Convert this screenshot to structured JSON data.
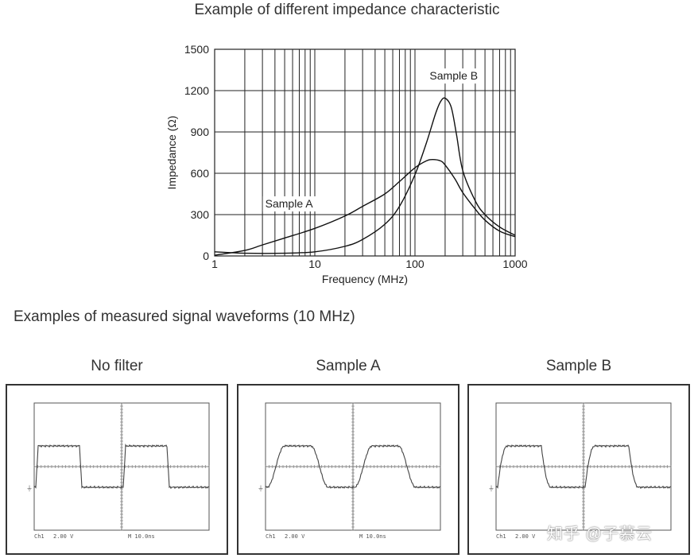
{
  "chart_data": {
    "type": "line",
    "title": "Example of different impedance characteristic",
    "xlabel": "Frequency (MHz)",
    "ylabel": "Impedance (Ω)",
    "x_scale": "log",
    "xlim": [
      1,
      1000
    ],
    "ylim": [
      0,
      1500
    ],
    "xticks": [
      "1",
      "10",
      "100",
      "1000"
    ],
    "yticks": [
      "0",
      "300",
      "600",
      "900",
      "1200",
      "1500"
    ],
    "grid": true,
    "series": [
      {
        "name": "Sample A",
        "x": [
          1,
          2,
          3,
          5,
          10,
          20,
          30,
          50,
          70,
          100,
          130,
          150,
          180,
          200,
          250,
          300,
          400,
          500,
          700,
          1000
        ],
        "y": [
          5,
          40,
          80,
          130,
          200,
          290,
          360,
          450,
          540,
          640,
          690,
          700,
          690,
          660,
          560,
          460,
          340,
          260,
          180,
          140
        ]
      },
      {
        "name": "Sample B",
        "x": [
          1,
          2,
          5,
          10,
          20,
          30,
          50,
          70,
          100,
          130,
          160,
          180,
          200,
          230,
          260,
          300,
          400,
          500,
          700,
          1000
        ],
        "y": [
          30,
          20,
          20,
          30,
          70,
          120,
          230,
          360,
          590,
          820,
          1030,
          1120,
          1145,
          1080,
          880,
          620,
          400,
          300,
          210,
          150
        ]
      }
    ],
    "annotations": [
      "Sample A",
      "Sample B"
    ]
  },
  "waveforms": {
    "title": "Examples of measured signal waveforms (10 MHz)",
    "panels": [
      {
        "label": "No filter",
        "shape": "square",
        "ch_text": "Ch1",
        "volt_text": "2.00 V",
        "time_text": "M 10.0ns"
      },
      {
        "label": "Sample A",
        "shape": "trapezoid",
        "ch_text": "Ch1",
        "volt_text": "2.00 V",
        "time_text": "M 10.0ns"
      },
      {
        "label": "Sample B",
        "shape": "rounded-square",
        "ch_text": "Ch1",
        "volt_text": "2.00 V",
        "time_text": ""
      }
    ]
  },
  "watermark": "知乎 @子慕云"
}
